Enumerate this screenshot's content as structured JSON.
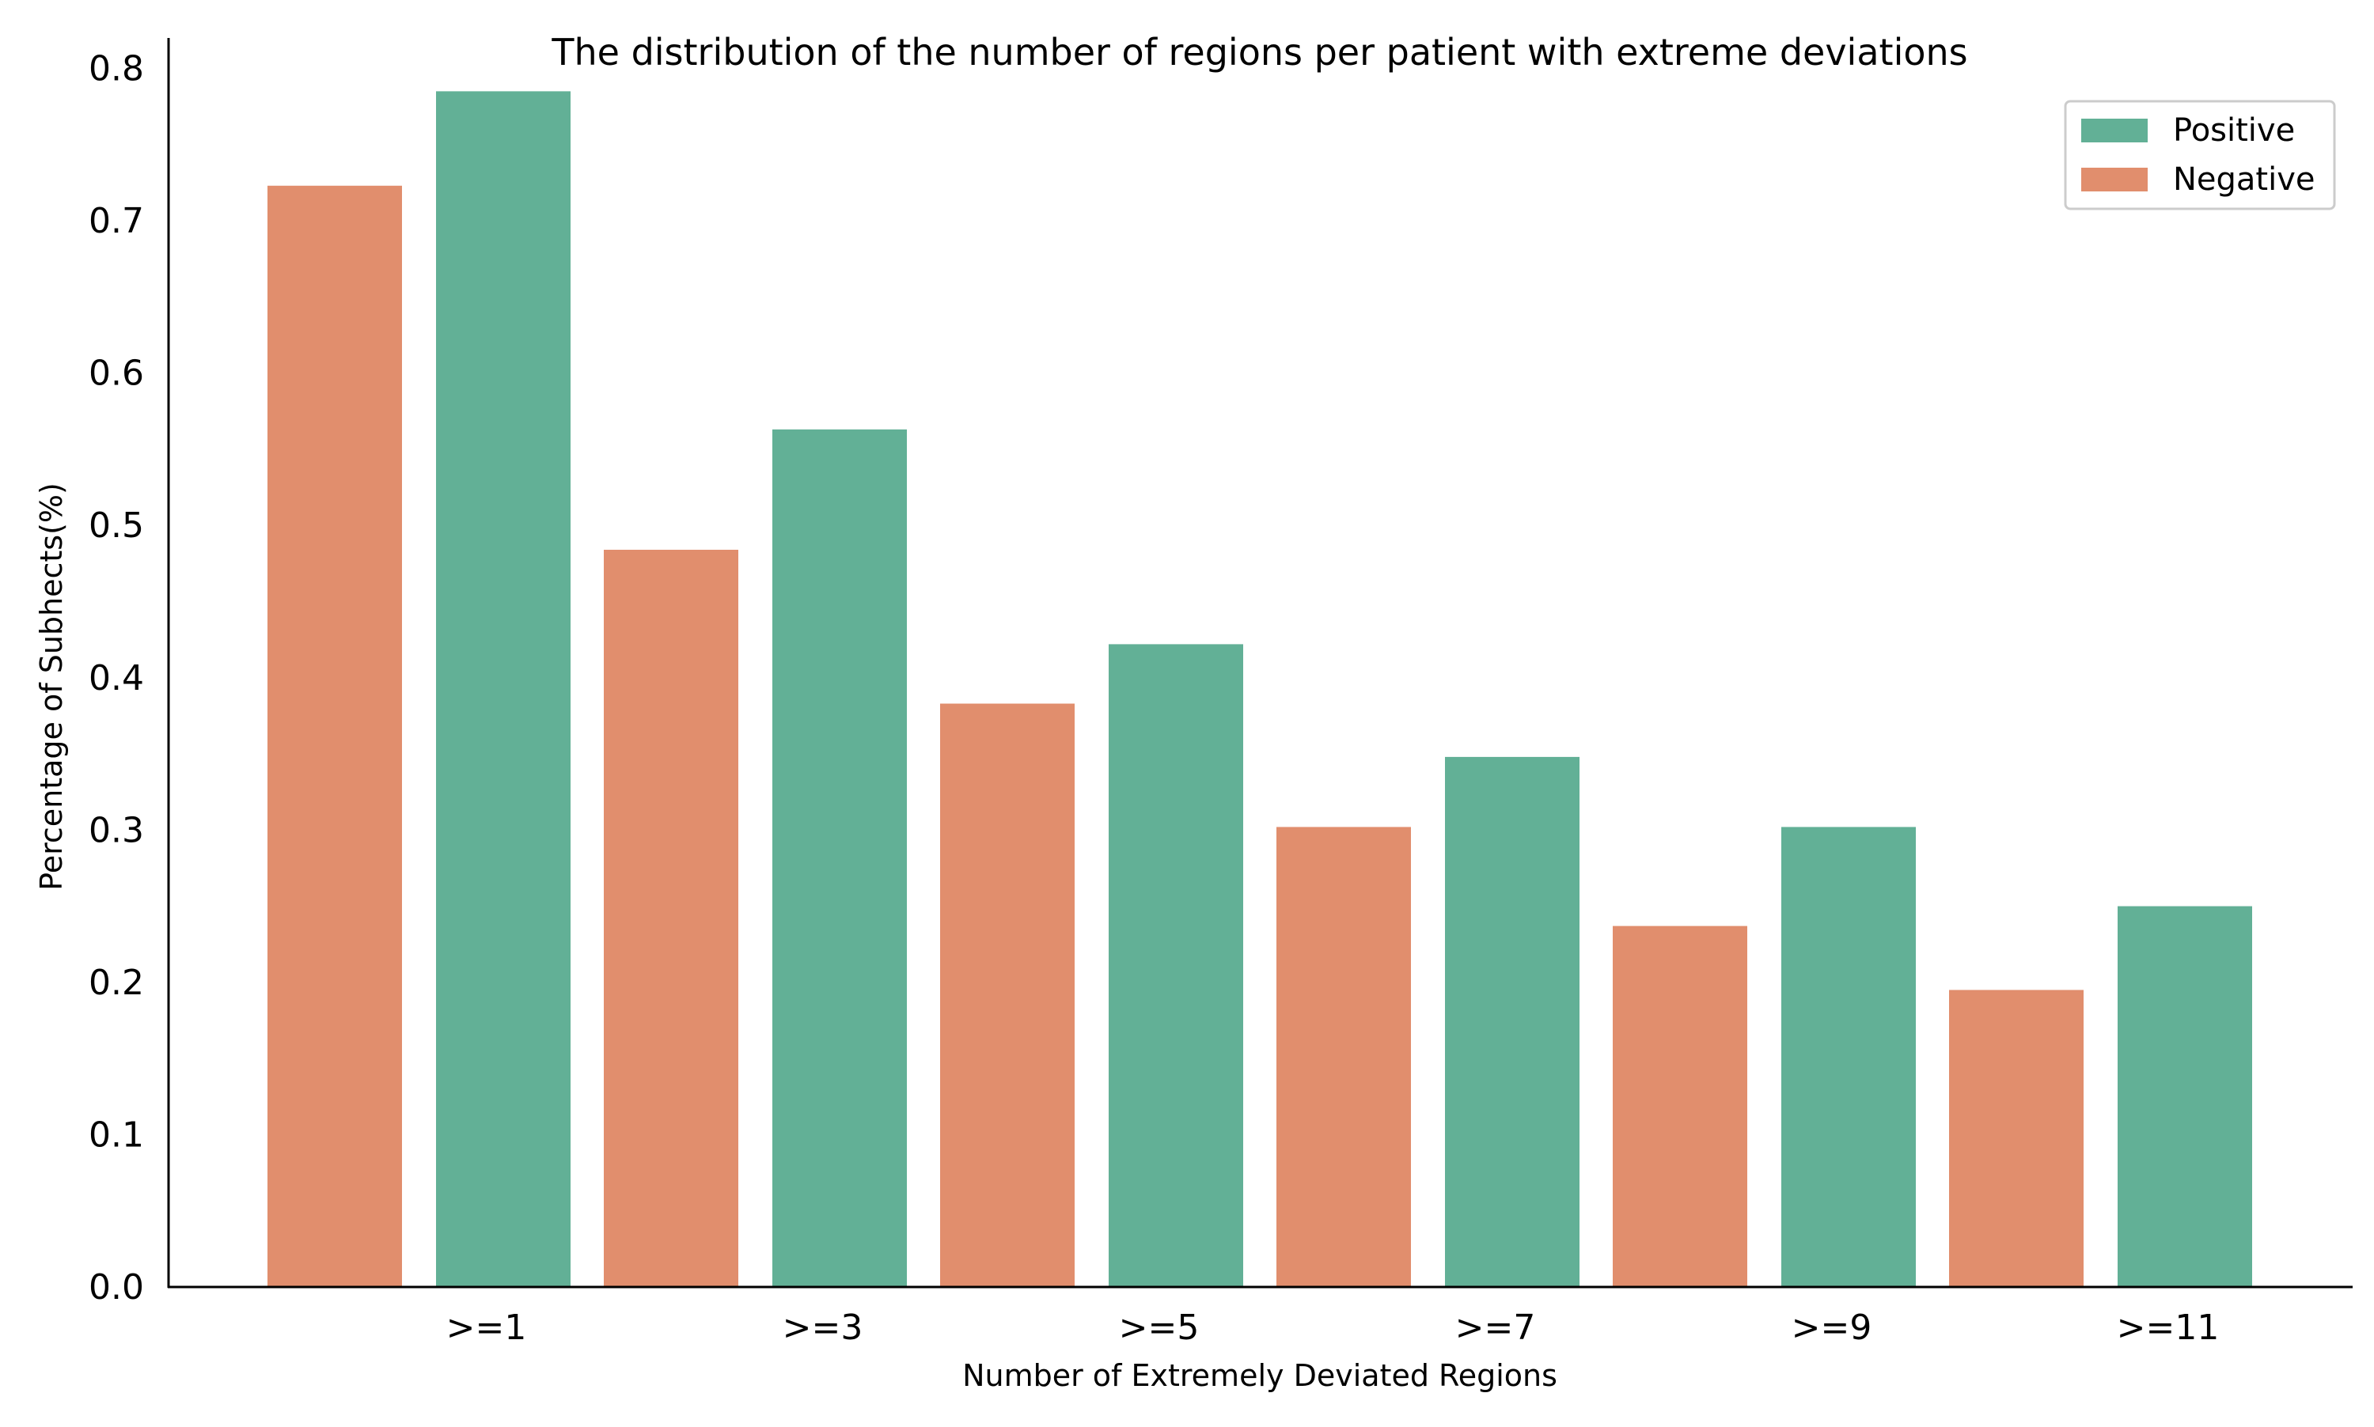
{
  "colors": {
    "positive": "#62b096",
    "negative": "#e18e6d",
    "axis": "#000000",
    "legend_border": "#cccccc"
  },
  "chart_data": {
    "type": "bar",
    "title": "The distribution of the number of regions per patient with extreme deviations",
    "xlabel": "Number of Extremely Deviated Regions",
    "ylabel": "Percentage of Subhects(%)",
    "ylim": [
      0,
      0.82
    ],
    "yticks": [
      "0.0",
      "0.1",
      "0.2",
      "0.3",
      "0.4",
      "0.5",
      "0.6",
      "0.7",
      "0.8"
    ],
    "categories": [
      ">=1",
      ">=3",
      ">=5",
      ">=7",
      ">=9",
      ">=11"
    ],
    "series": [
      {
        "name": "Negative",
        "color": "#e18e6d",
        "values": [
          0.723,
          0.484,
          0.383,
          0.302,
          0.237,
          0.195
        ]
      },
      {
        "name": "Positive",
        "color": "#62b096",
        "values": [
          0.785,
          0.563,
          0.422,
          0.348,
          0.302,
          0.25
        ]
      }
    ],
    "legend": {
      "placement": "top-right",
      "entries": [
        "Positive",
        "Negative"
      ]
    },
    "grid": false
  }
}
